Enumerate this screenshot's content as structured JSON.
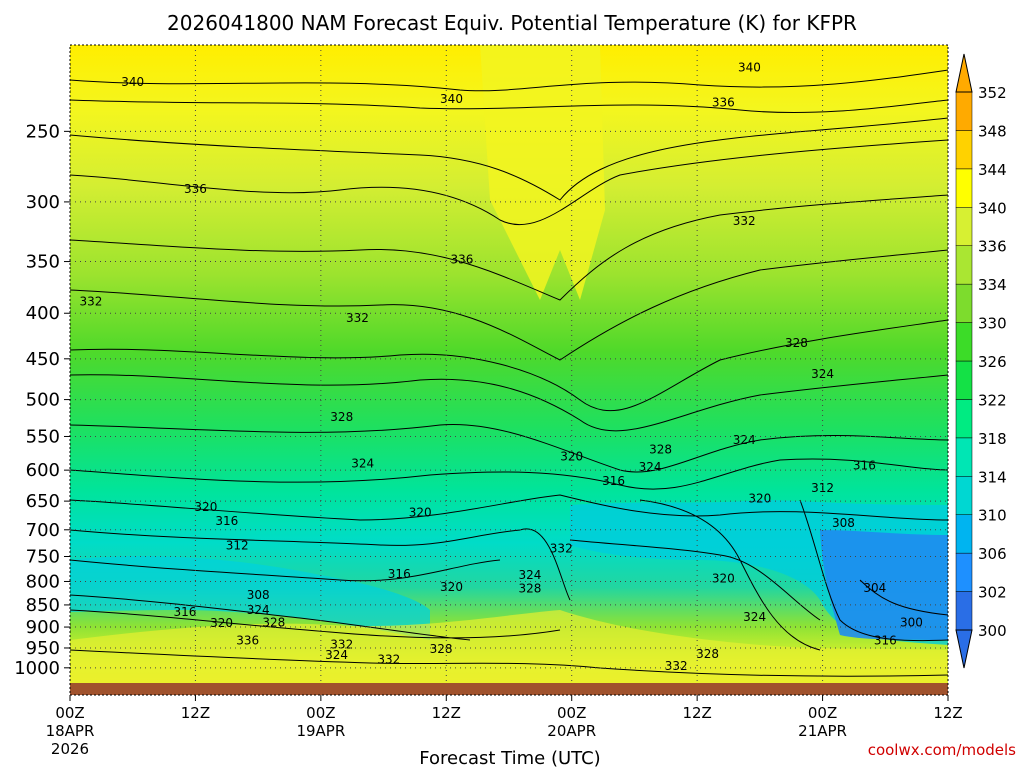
{
  "title": "2026041800 NAM Forecast Equiv. Potential Temperature (K) for KFPR",
  "credit": "coolwx.com/models",
  "chart_data": {
    "type": "heatmap",
    "title": "2026041800 NAM Forecast Equiv. Potential Temperature (K) for KFPR",
    "xlabel": "Forecast Time (UTC)",
    "ylabel": "",
    "x_ticks": [
      {
        "h": 0,
        "label": "00Z",
        "sub1": "18APR",
        "sub2": "2026"
      },
      {
        "h": 12,
        "label": "12Z",
        "sub1": "",
        "sub2": ""
      },
      {
        "h": 24,
        "label": "00Z",
        "sub1": "19APR",
        "sub2": ""
      },
      {
        "h": 36,
        "label": "12Z",
        "sub1": "",
        "sub2": ""
      },
      {
        "h": 48,
        "label": "00Z",
        "sub1": "20APR",
        "sub2": ""
      },
      {
        "h": 60,
        "label": "12Z",
        "sub1": "",
        "sub2": ""
      },
      {
        "h": 72,
        "label": "00Z",
        "sub1": "21APR",
        "sub2": ""
      },
      {
        "h": 84,
        "label": "12Z",
        "sub1": "",
        "sub2": ""
      }
    ],
    "y_ticks": [
      250,
      300,
      350,
      400,
      450,
      500,
      550,
      600,
      650,
      700,
      750,
      800,
      850,
      900,
      950,
      1000
    ],
    "x_range_hours": [
      0,
      84
    ],
    "y_range_hpa": [
      200,
      1040
    ],
    "y_scale": "log",
    "grid": true,
    "colorbar": {
      "levels": [
        300,
        302,
        306,
        310,
        314,
        318,
        322,
        326,
        330,
        334,
        336,
        340,
        344,
        348,
        352
      ],
      "labels": [
        "352",
        "348",
        "344",
        "340",
        "336",
        "334",
        "330",
        "326",
        "322",
        "318",
        "314",
        "310",
        "306",
        "302",
        "300"
      ],
      "colors": [
        "#2a6ee6",
        "#1e90ff",
        "#00b4f0",
        "#00d7d2",
        "#00e6b4",
        "#00eb82",
        "#14e146",
        "#3cdc28",
        "#7ddc2d",
        "#aae632",
        "#d7f032",
        "#ffff00",
        "#ffd200",
        "#ffaa00"
      ]
    },
    "contour_labels": [
      {
        "h": 6,
        "p": 220,
        "v": "340"
      },
      {
        "h": 36.5,
        "p": 230,
        "v": "340"
      },
      {
        "h": 65,
        "p": 212,
        "v": "340"
      },
      {
        "h": 62.5,
        "p": 232,
        "v": "336"
      },
      {
        "h": 12,
        "p": 290,
        "v": "336"
      },
      {
        "h": 37.5,
        "p": 348,
        "v": "336"
      },
      {
        "h": 64.5,
        "p": 315,
        "v": "332"
      },
      {
        "h": 2,
        "p": 388,
        "v": "332"
      },
      {
        "h": 27.5,
        "p": 405,
        "v": "332"
      },
      {
        "h": 69.5,
        "p": 432,
        "v": "328"
      },
      {
        "h": 72,
        "p": 468,
        "v": "324"
      },
      {
        "h": 26,
        "p": 523,
        "v": "328"
      },
      {
        "h": 56.5,
        "p": 569,
        "v": "328"
      },
      {
        "h": 28,
        "p": 590,
        "v": "324"
      },
      {
        "h": 64.5,
        "p": 555,
        "v": "324"
      },
      {
        "h": 55.5,
        "p": 595,
        "v": "324"
      },
      {
        "h": 48,
        "p": 579,
        "v": "320"
      },
      {
        "h": 76,
        "p": 593,
        "v": "316"
      },
      {
        "h": 52,
        "p": 617,
        "v": "316"
      },
      {
        "h": 13,
        "p": 660,
        "v": "320"
      },
      {
        "h": 33.5,
        "p": 669,
        "v": "320"
      },
      {
        "h": 66,
        "p": 646,
        "v": "320"
      },
      {
        "h": 72,
        "p": 628,
        "v": "312"
      },
      {
        "h": 15,
        "p": 684,
        "v": "316"
      },
      {
        "h": 74,
        "p": 688,
        "v": "308"
      },
      {
        "h": 16,
        "p": 729,
        "v": "312"
      },
      {
        "h": 47,
        "p": 735,
        "v": "332"
      },
      {
        "h": 31.5,
        "p": 785,
        "v": "316"
      },
      {
        "h": 44,
        "p": 787,
        "v": "324"
      },
      {
        "h": 36.5,
        "p": 812,
        "v": "320"
      },
      {
        "h": 62.5,
        "p": 794,
        "v": "320"
      },
      {
        "h": 44,
        "p": 815,
        "v": "328"
      },
      {
        "h": 77,
        "p": 814,
        "v": "304"
      },
      {
        "h": 18,
        "p": 829,
        "v": "308"
      },
      {
        "h": 11,
        "p": 866,
        "v": "316"
      },
      {
        "h": 18,
        "p": 861,
        "v": "324"
      },
      {
        "h": 65.5,
        "p": 877,
        "v": "324"
      },
      {
        "h": 14.5,
        "p": 891,
        "v": "320"
      },
      {
        "h": 19.5,
        "p": 890,
        "v": "328"
      },
      {
        "h": 80.5,
        "p": 890,
        "v": "300"
      },
      {
        "h": 17,
        "p": 932,
        "v": "336"
      },
      {
        "h": 26,
        "p": 941,
        "v": "332"
      },
      {
        "h": 35.5,
        "p": 953,
        "v": "328"
      },
      {
        "h": 78,
        "p": 932,
        "v": "316"
      },
      {
        "h": 25.5,
        "p": 967,
        "v": "324"
      },
      {
        "h": 30.5,
        "p": 979,
        "v": "332"
      },
      {
        "h": 61,
        "p": 965,
        "v": "328"
      },
      {
        "h": 58,
        "p": 995,
        "v": "332"
      }
    ]
  }
}
